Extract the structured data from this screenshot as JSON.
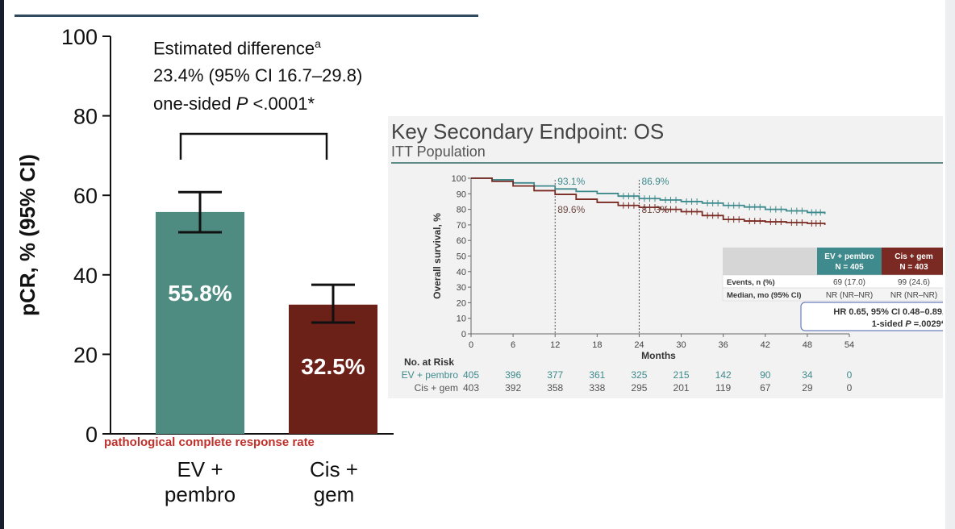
{
  "chart_data": [
    {
      "type": "bar",
      "categories": [
        "EV +\npembro",
        "Cis +\ngem"
      ],
      "values": [
        55.8,
        32.5
      ],
      "value_labels": [
        "55.8%",
        "32.5%"
      ],
      "ci": [
        [
          50.7,
          60.8
        ],
        [
          28.0,
          37.5
        ]
      ],
      "colors": [
        "#4e8c82",
        "#6b2018"
      ],
      "ylabel": "pCR, % (95% CI)",
      "ylim": [
        0,
        100
      ],
      "yticks": [
        0,
        20,
        40,
        60,
        80,
        100
      ],
      "annotation": {
        "line1": "Estimated difference",
        "line1_sup": "a",
        "line2": "23.4% (95% CI 16.7–29.8)",
        "line3_pre": "one-sided ",
        "line3_p": "P",
        "line3_post": " <.0001*"
      },
      "note": "pathological complete response rate",
      "note_color": "#c0302a",
      "category_labels": [
        [
          "EV +",
          "pembro"
        ],
        [
          "Cis +",
          "gem"
        ]
      ]
    },
    {
      "type": "line",
      "title": "Key Secondary Endpoint: OS",
      "subtitle": "ITT Population",
      "xlabel": "Months",
      "ylabel": "Overall survival, %",
      "xlim": [
        0,
        54
      ],
      "ylim": [
        0,
        100
      ],
      "xticks": [
        0,
        6,
        12,
        18,
        24,
        30,
        36,
        42,
        48,
        54
      ],
      "yticks": [
        0,
        10,
        20,
        30,
        40,
        50,
        60,
        70,
        80,
        90,
        100
      ],
      "series": [
        {
          "name": "EV + pembro",
          "color": "#3e8a8c",
          "x": [
            0,
            3,
            6,
            9,
            12,
            15,
            18,
            21,
            24,
            27,
            30,
            33,
            36,
            39,
            42,
            45,
            48,
            50.5
          ],
          "y": [
            100,
            99,
            97,
            95,
            93.1,
            91.5,
            90.2,
            88.5,
            86.9,
            86,
            85,
            84,
            82.5,
            81.5,
            80,
            79,
            78,
            77
          ]
        },
        {
          "name": "Cis + gem",
          "color": "#7a2a22",
          "x": [
            0,
            3,
            6,
            9,
            12,
            15,
            18,
            21,
            24,
            27,
            30,
            33,
            36,
            39,
            42,
            45,
            48,
            50.5
          ],
          "y": [
            100,
            98,
            95,
            92,
            89.6,
            86.5,
            84.5,
            82.5,
            81.3,
            80,
            78.5,
            76,
            73.5,
            72.5,
            72,
            71.5,
            71,
            70
          ]
        }
      ],
      "landmarks": [
        {
          "x": 12,
          "top": "93.1%",
          "bottom": "89.6%"
        },
        {
          "x": 24,
          "top": "86.9%",
          "bottom": "81.3%"
        }
      ],
      "table": {
        "headers": [
          "EV + pembro\nN = 405",
          "Cis + gem\nN = 403"
        ],
        "header_colors": [
          "#3e8a8c",
          "#7a2a22"
        ],
        "rows": [
          {
            "label": "Events, n (%)",
            "values": [
              "69 (17.0)",
              "99 (24.6)"
            ]
          },
          {
            "label": "Median, mo (95% CI)",
            "values": [
              "NR (NR–NR)",
              "NR (NR–NR)"
            ]
          }
        ]
      },
      "hr_box": {
        "line1": "HR 0.65, 95% CI 0.48–0.89,",
        "line2_pre": "1-sided ",
        "line2_p": "P",
        "line2_post": " =.0029*"
      },
      "risk_table": {
        "title": "No. at Risk",
        "rows": [
          {
            "label": "EV + pembro",
            "color": "#3e8a8c",
            "values": [
              "405",
              "396",
              "377",
              "361",
              "325",
              "215",
              "142",
              "90",
              "34",
              "0"
            ]
          },
          {
            "label": "Cis + gem",
            "color": "#555555",
            "values": [
              "403",
              "392",
              "358",
              "338",
              "295",
              "201",
              "119",
              "67",
              "29",
              "0"
            ]
          }
        ]
      }
    }
  ]
}
